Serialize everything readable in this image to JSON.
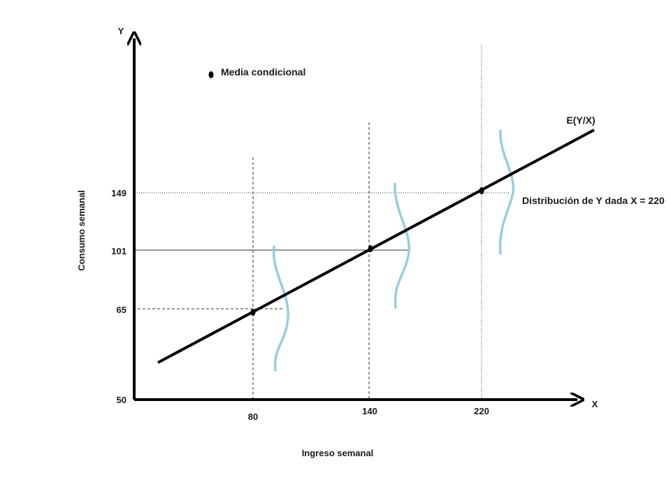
{
  "axes": {
    "y_letter": "Y",
    "x_letter": "X",
    "y_title": "Consumo semanal",
    "x_title": "Ingreso semanal",
    "origin_label": "50"
  },
  "y_ticks": [
    "149",
    "101",
    "65"
  ],
  "x_ticks": [
    "80",
    "140",
    "220"
  ],
  "regression_label": "E(Y/X)",
  "legend": {
    "label": "Media condicional"
  },
  "annotation": "Distribución de Y dada X = 220",
  "colors": {
    "axis": "#000000",
    "line": "#000000",
    "distribution": "#9cccd8",
    "guide": "#333333"
  },
  "chart_data": {
    "type": "line",
    "series": [
      {
        "name": "E(Y/X)",
        "x": [
          80,
          140,
          220
        ],
        "y": [
          65,
          101,
          149
        ]
      }
    ]
  }
}
